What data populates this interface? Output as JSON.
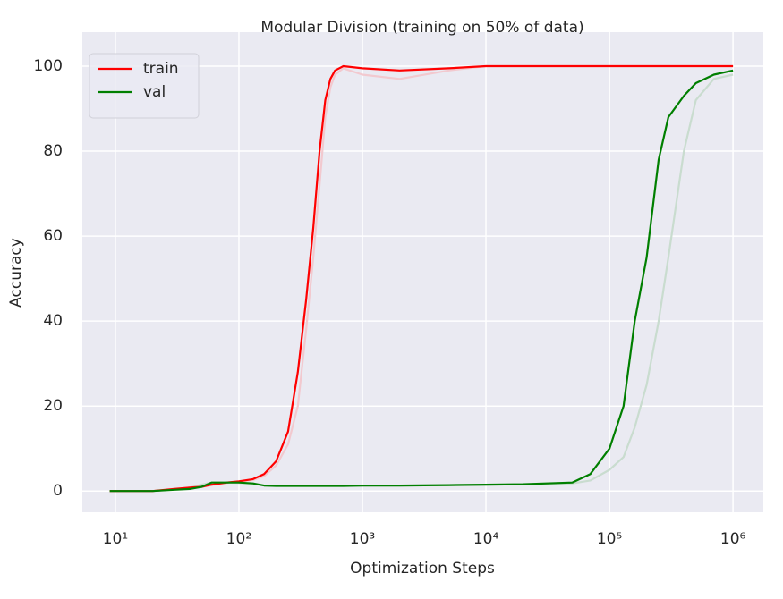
{
  "chart_data": {
    "type": "line",
    "title": "Modular Division (training on 50% of data)",
    "xlabel": "Optimization Steps",
    "ylabel": "Accuracy",
    "xscale": "log",
    "grid": true,
    "legend": "upper left",
    "xlim": [
      5.4,
      1760000
    ],
    "ylim": [
      -5,
      108
    ],
    "xticks": [
      {
        "value": 10,
        "label": "10¹"
      },
      {
        "value": 100,
        "label": "10²"
      },
      {
        "value": 1000,
        "label": "10³"
      },
      {
        "value": 10000,
        "label": "10⁴"
      },
      {
        "value": 100000,
        "label": "10⁵"
      },
      {
        "value": 1000000,
        "label": "10⁶"
      }
    ],
    "yticks": [
      0,
      20,
      40,
      60,
      80,
      100
    ],
    "x": [
      9,
      12,
      20,
      30,
      40,
      50,
      60,
      80,
      100,
      130,
      160,
      200,
      250,
      300,
      350,
      400,
      450,
      500,
      550,
      600,
      700,
      1000,
      2000,
      5000,
      10000,
      20000,
      50000,
      70000,
      100000,
      130000,
      160000,
      200000,
      250000,
      300000,
      400000,
      500000,
      700000,
      1000000
    ],
    "series": [
      {
        "color": "#f2c9cf",
        "values": [
          0,
          0,
          0,
          0.4,
          0.7,
          1,
          1.4,
          1.9,
          2.2,
          2.6,
          3.5,
          6,
          11,
          20,
          38,
          55,
          72,
          88,
          95,
          98,
          99.5,
          98,
          97,
          99,
          100,
          100,
          100,
          100,
          100,
          100,
          100,
          100,
          100,
          100,
          100,
          100,
          100,
          100
        ]
      },
      {
        "color": "#c9dccf",
        "values": [
          0,
          0,
          0,
          0.4,
          0.8,
          1.5,
          2,
          2,
          1.9,
          1.7,
          1.3,
          1.2,
          1.2,
          1.2,
          1.2,
          1.2,
          1.2,
          1.2,
          1.2,
          1.2,
          1.2,
          1.3,
          1.3,
          1.4,
          1.5,
          1.6,
          1.8,
          2.5,
          5,
          8,
          15,
          25,
          40,
          55,
          80,
          92,
          97,
          98
        ]
      },
      {
        "name": "train",
        "color": "#ff0000",
        "values": [
          0,
          0,
          0,
          0.5,
          0.8,
          1,
          1.5,
          2,
          2.3,
          2.8,
          4,
          7,
          14,
          28,
          45,
          62,
          80,
          92,
          97,
          99,
          100,
          99.5,
          99,
          99.5,
          100,
          100,
          100,
          100,
          100,
          100,
          100,
          100,
          100,
          100,
          100,
          100,
          100,
          100
        ]
      },
      {
        "name": "val",
        "color": "#007f00",
        "values": [
          0,
          0,
          0,
          0.3,
          0.5,
          1,
          2,
          2,
          2,
          1.8,
          1.3,
          1.2,
          1.2,
          1.2,
          1.2,
          1.2,
          1.2,
          1.2,
          1.2,
          1.2,
          1.2,
          1.3,
          1.3,
          1.4,
          1.5,
          1.6,
          2,
          4,
          10,
          20,
          40,
          55,
          78,
          88,
          93,
          96,
          98,
          99
        ]
      }
    ]
  }
}
